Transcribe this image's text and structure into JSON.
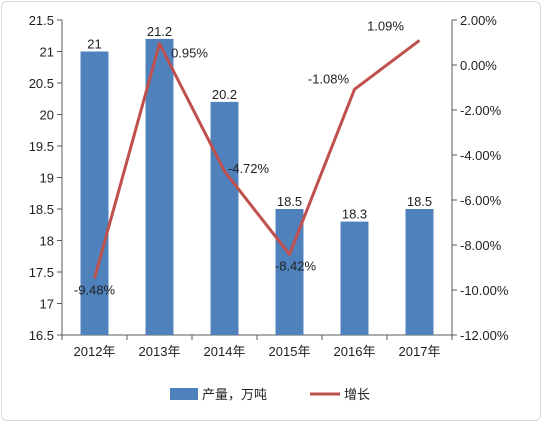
{
  "chart_data": {
    "type": "bar+line",
    "categories": [
      "2012年",
      "2013年",
      "2014年",
      "2015年",
      "2016年",
      "2017年"
    ],
    "series": [
      {
        "name": "产量，万吨",
        "type": "bar",
        "axis": "left",
        "values": [
          21,
          21.2,
          20.2,
          18.5,
          18.3,
          18.5
        ],
        "labels": [
          "21",
          "21.2",
          "20.2",
          "18.5",
          "18.3",
          "18.5"
        ],
        "color": "#4f81bd"
      },
      {
        "name": "增长",
        "type": "line",
        "axis": "right",
        "values": [
          -9.48,
          0.95,
          -4.72,
          -8.42,
          -1.08,
          1.09
        ],
        "labels": [
          "-9.48%",
          "0.95%",
          "-4.72%",
          "-8.42%",
          "-1.08%",
          "1.09%"
        ],
        "color": "#c0504d"
      }
    ],
    "y_left": {
      "ylim": [
        16.5,
        21.5
      ],
      "ticks": [
        "21.5",
        "21",
        "20.5",
        "20",
        "19.5",
        "19",
        "18.5",
        "18",
        "17.5",
        "17",
        "16.5"
      ]
    },
    "y_right": {
      "ylim": [
        -12,
        2
      ],
      "ticks": [
        "2.00%",
        "0.00%",
        "-2.00%",
        "-4.00%",
        "-6.00%",
        "-8.00%",
        "-10.00%",
        "-12.00%"
      ]
    },
    "grid": false,
    "legend": "bottom"
  }
}
